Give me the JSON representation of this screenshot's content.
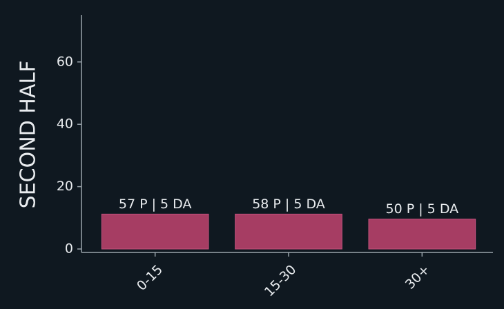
{
  "chart_data": {
    "type": "bar",
    "y_label": "SECOND HALF",
    "categories": [
      "0-15",
      "15-30",
      "30+"
    ],
    "values": [
      11.2,
      11.2,
      9.6
    ],
    "bar_labels": [
      "57 P | 5 DA",
      "58 P | 5 DA",
      "50 P | 5 DA"
    ],
    "color": "#a63d63",
    "ylim": [
      0,
      75
    ],
    "yticks": [
      0,
      20,
      40,
      60
    ],
    "grid": false
  }
}
